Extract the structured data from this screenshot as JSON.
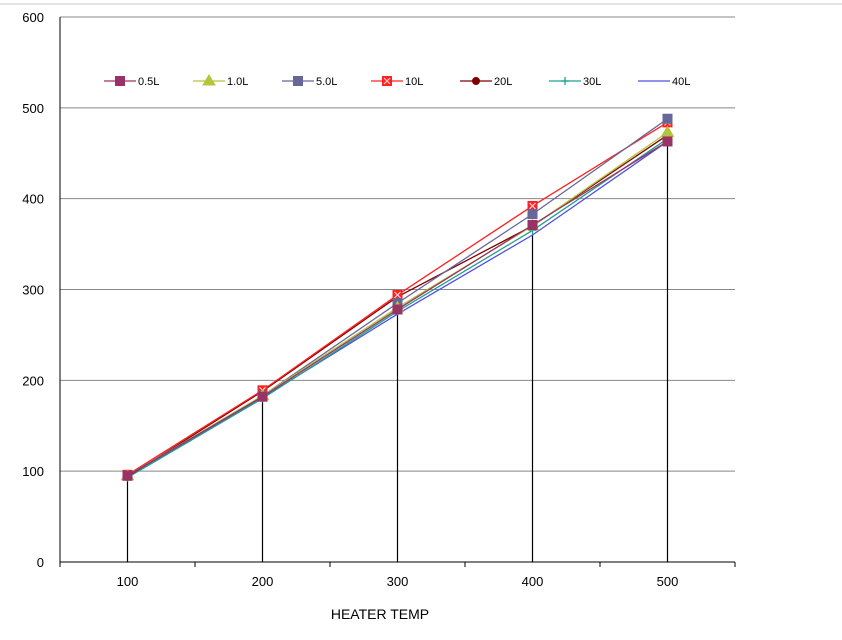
{
  "chart_data": {
    "type": "line",
    "title": "",
    "xlabel": "HEATER  TEMP",
    "ylabel": "",
    "x": [
      100,
      200,
      300,
      400,
      500
    ],
    "ylim": [
      0,
      600
    ],
    "y_ticks": [
      0,
      100,
      200,
      300,
      400,
      500,
      600
    ],
    "grid": true,
    "legend_position": "top",
    "series": [
      {
        "name": "0.5L",
        "color": "#993366",
        "marker": "square",
        "values": [
          95,
          182,
          278,
          371,
          463
        ]
      },
      {
        "name": "1.0L",
        "color": "#b5c43a",
        "marker": "triangle",
        "values": [
          95,
          183,
          280,
          370,
          473
        ]
      },
      {
        "name": "5.0L",
        "color": "#666699",
        "marker": "square",
        "values": [
          95,
          183,
          285,
          383,
          488
        ]
      },
      {
        "name": "10L",
        "color": "#ff2020",
        "marker": "square-x",
        "values": [
          96,
          189,
          294,
          392,
          484
        ]
      },
      {
        "name": "20L",
        "color": "#800000",
        "marker": "circle",
        "values": [
          94,
          188,
          292,
          370,
          470
        ]
      },
      {
        "name": "30L",
        "color": "#1f9f8f",
        "marker": "plus",
        "values": [
          93,
          180,
          276,
          365,
          466
        ]
      },
      {
        "name": "40L",
        "color": "#5050e0",
        "marker": "none",
        "values": [
          94,
          181,
          273,
          360,
          463
        ]
      }
    ],
    "drop_lines": {
      "color": "#000000",
      "values": [
        95,
        182,
        275,
        360,
        463
      ]
    }
  }
}
